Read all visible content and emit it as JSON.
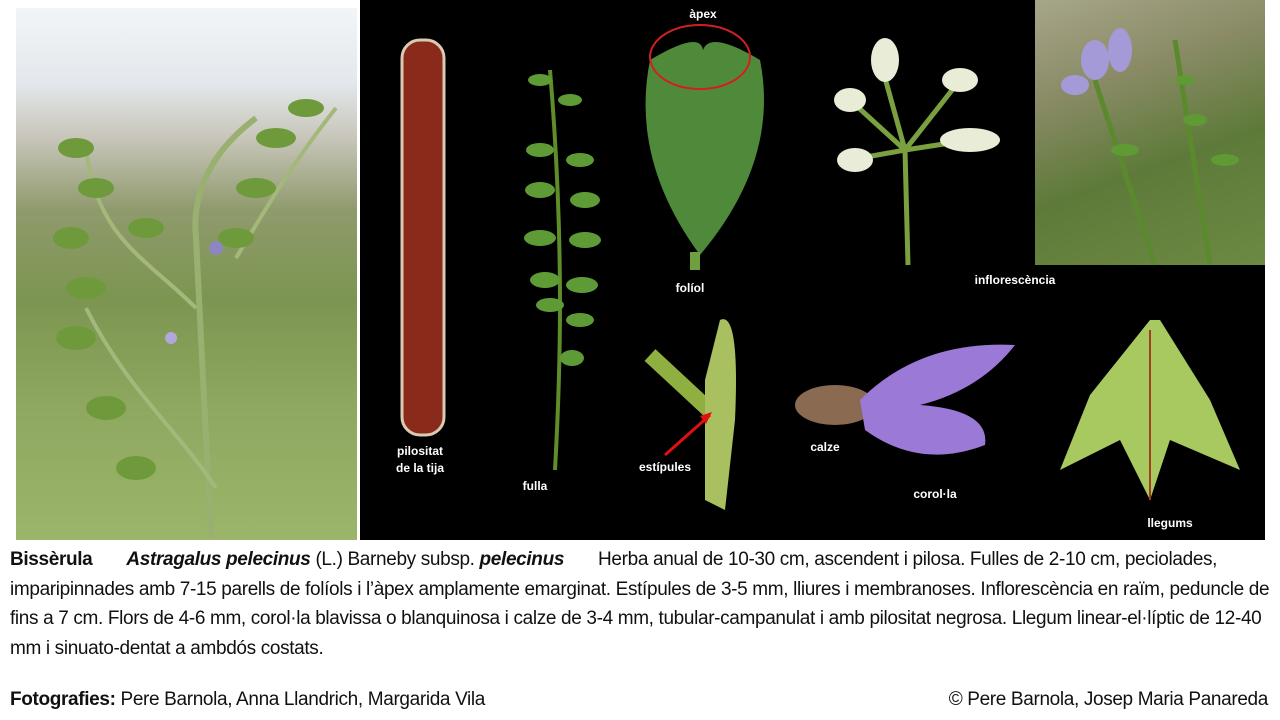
{
  "labels": {
    "apex": "àpex",
    "foliol": "folíol",
    "inflorescencia": "inflorescència",
    "pilositat": "pilositat",
    "de_la_tija": "de la tija",
    "fulla": "fulla",
    "estipules": "estípules",
    "calze": "calze",
    "corolla": "corol·la",
    "llegums": "llegums"
  },
  "caption": {
    "common_name": "Bissèrula",
    "genus_species": "Astragalus pelecinus",
    "author": " (L.) Barneby subsp. ",
    "subspecies": "pelecinus",
    "description": "Herba anual de 10-30 cm, ascendent i pilosa. Fulles de 2-10 cm, peciolades, imparipinnades amb 7-15 parells de folíols i l’àpex amplamente emarginat. Estípules de 3-5 mm, lliures i membranoses. Inflorescència en raïm, peduncle de fins a 7 cm. Flors de 4-6 mm, corol·la blavissa o blanquinosa i calze de 3-4 mm, tubular-campanulat i amb pilositat negrosa. Llegum linear-el·líptic de 12-40 mm i sinuato-dentat a ambdós costats."
  },
  "footer": {
    "photos_label": "Fotografies:",
    "photographers": " Pere Barnola, Anna Llandrich,  Margarida Vila",
    "copyright": "© Pere Barnola, Josep Maria Panareda"
  }
}
